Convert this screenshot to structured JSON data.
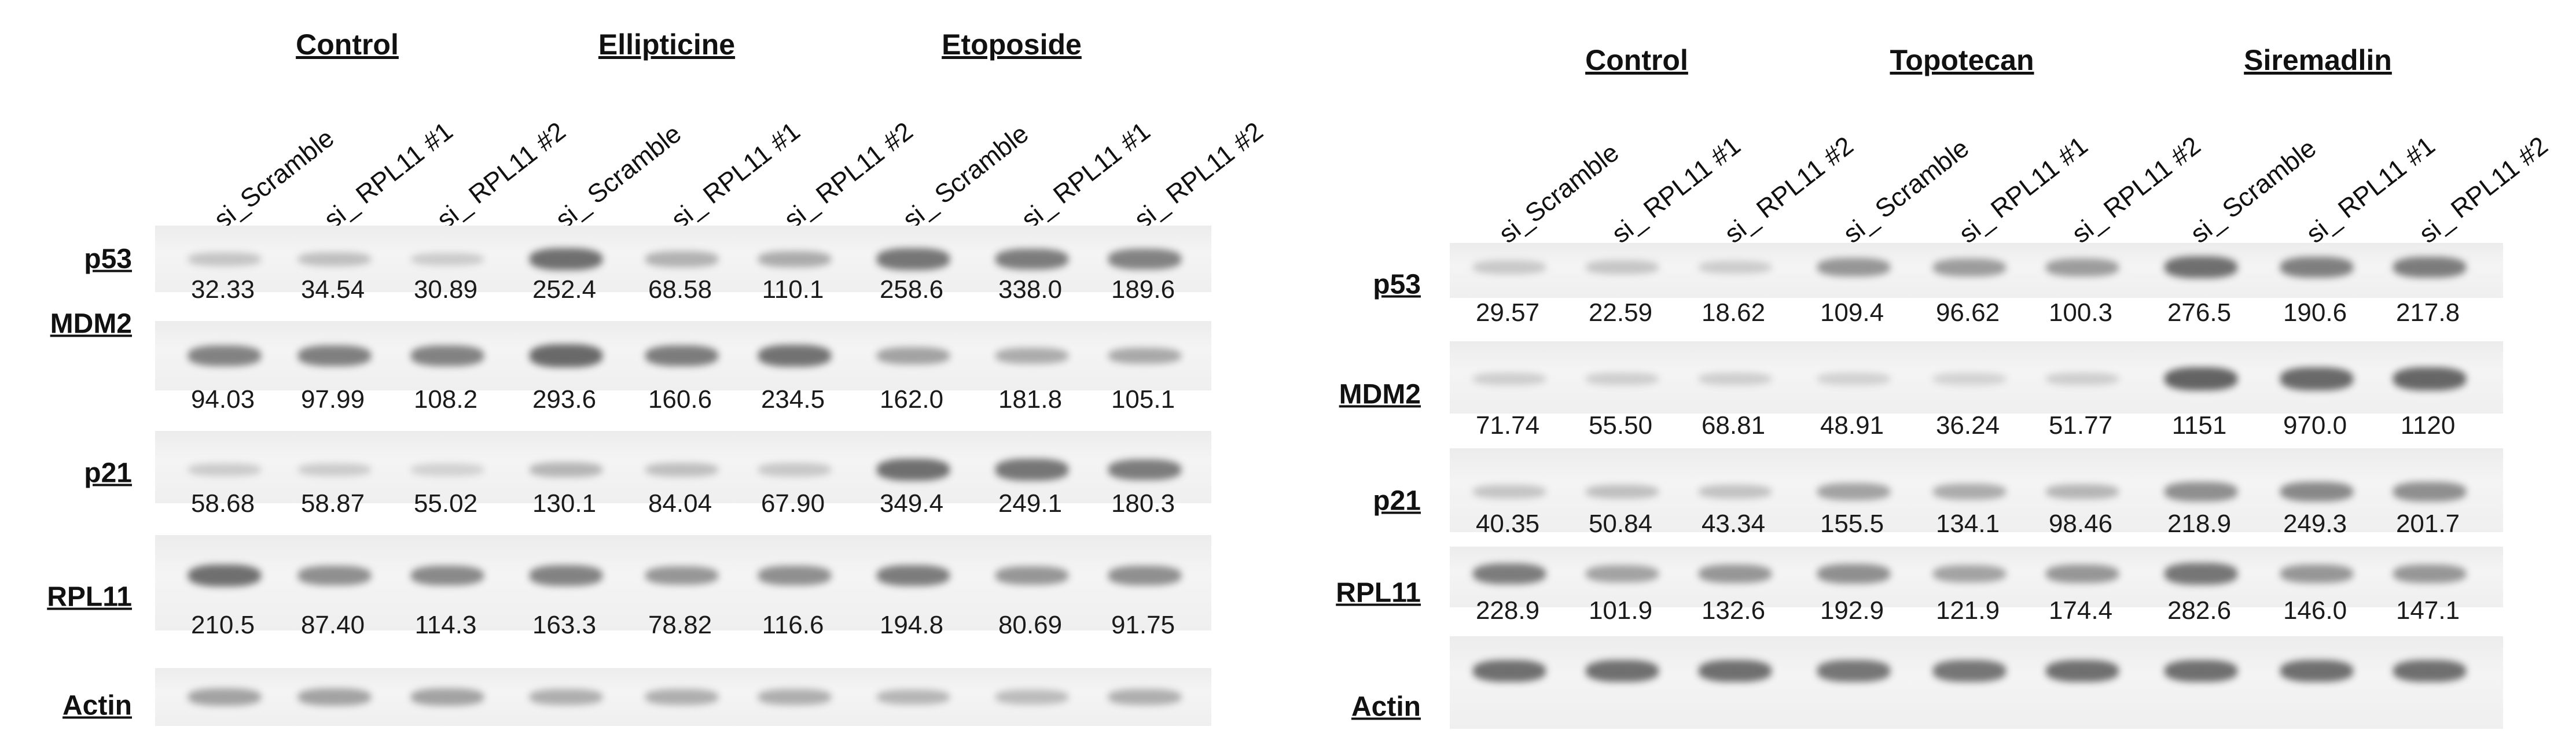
{
  "colors": {
    "text": "#111111",
    "strip_background": "#efefef",
    "band": "#333333"
  },
  "panels": [
    {
      "name": "left",
      "treatments": [
        "Control",
        "Ellipticine",
        "Etoposide"
      ],
      "lanes": [
        "si_Scramble",
        "si_ RPL11 #1",
        "si_ RPL11 #2",
        "si_ Scramble",
        "si_ RPL11 #1",
        "si_ RPL11 #2",
        "si_ Scramble",
        "si_ RPL11 #1",
        "si_ RPL11 #2"
      ],
      "blots": [
        {
          "protein": "p53",
          "band_intensity": [
            0.18,
            0.22,
            0.12,
            0.85,
            0.32,
            0.38,
            0.8,
            0.75,
            0.7
          ],
          "quant": [
            "32.33",
            "34.54",
            "30.89",
            "252.4",
            "68.58",
            "110.1",
            "258.6",
            "338.0",
            "189.6"
          ]
        },
        {
          "protein": "MDM2",
          "band_intensity": [
            0.7,
            0.72,
            0.7,
            0.9,
            0.75,
            0.82,
            0.45,
            0.38,
            0.4
          ],
          "quant": [
            "94.03",
            "97.99",
            "108.2",
            "293.6",
            "160.6",
            "234.5",
            "162.0",
            "181.8",
            "105.1"
          ]
        },
        {
          "protein": "p21",
          "band_intensity": [
            0.12,
            0.12,
            0.08,
            0.3,
            0.22,
            0.15,
            0.85,
            0.8,
            0.75
          ],
          "quant": [
            "58.68",
            "58.87",
            "55.02",
            "130.1",
            "84.04",
            "67.90",
            "349.4",
            "249.1",
            "180.3"
          ]
        },
        {
          "protein": "RPL11",
          "band_intensity": [
            0.85,
            0.6,
            0.65,
            0.7,
            0.55,
            0.6,
            0.75,
            0.55,
            0.6
          ],
          "quant": [
            "210.5",
            "87.40",
            "114.3",
            "163.3",
            "78.82",
            "116.6",
            "194.8",
            "80.69",
            "91.75"
          ]
        },
        {
          "protein": "Actin",
          "band_intensity": [
            0.45,
            0.45,
            0.45,
            0.35,
            0.35,
            0.35,
            0.3,
            0.25,
            0.35
          ]
        }
      ]
    },
    {
      "name": "right",
      "treatments": [
        "Control",
        "Topotecan",
        "Siremadlin"
      ],
      "lanes": [
        "si_Scramble",
        "si_ RPL11 #1",
        "si_ RPL11 #2",
        "si_ Scramble",
        "si_ RPL11 #1",
        "si_ RPL11 #2",
        "si_ Scramble",
        "si_ RPL11 #1",
        "si_ RPL11 #2"
      ],
      "blots": [
        {
          "protein": "p53",
          "band_intensity": [
            0.15,
            0.18,
            0.12,
            0.55,
            0.5,
            0.5,
            0.85,
            0.72,
            0.75
          ],
          "quant": [
            "29.57",
            "22.59",
            "18.62",
            "109.4",
            "96.62",
            "100.3",
            "276.5",
            "190.6",
            "217.8"
          ]
        },
        {
          "protein": "MDM2",
          "band_intensity": [
            0.1,
            0.1,
            0.1,
            0.08,
            0.06,
            0.1,
            0.95,
            0.9,
            0.92
          ],
          "quant": [
            "71.74",
            "55.50",
            "68.81",
            "48.91",
            "36.24",
            "51.77",
            "1151",
            "970.0",
            "1120"
          ]
        },
        {
          "protein": "p21",
          "band_intensity": [
            0.18,
            0.22,
            0.2,
            0.45,
            0.38,
            0.3,
            0.6,
            0.65,
            0.6
          ],
          "quant": [
            "40.35",
            "50.84",
            "43.34",
            "155.5",
            "134.1",
            "98.46",
            "218.9",
            "249.3",
            "201.7"
          ]
        },
        {
          "protein": "RPL11",
          "band_intensity": [
            0.75,
            0.45,
            0.55,
            0.6,
            0.45,
            0.55,
            0.8,
            0.55,
            0.55
          ],
          "quant": [
            "228.9",
            "101.9",
            "132.6",
            "192.9",
            "121.9",
            "174.4",
            "282.6",
            "146.0",
            "147.1"
          ]
        },
        {
          "protein": "Actin",
          "band_intensity": [
            0.85,
            0.85,
            0.85,
            0.8,
            0.8,
            0.85,
            0.85,
            0.85,
            0.85
          ]
        }
      ]
    }
  ]
}
